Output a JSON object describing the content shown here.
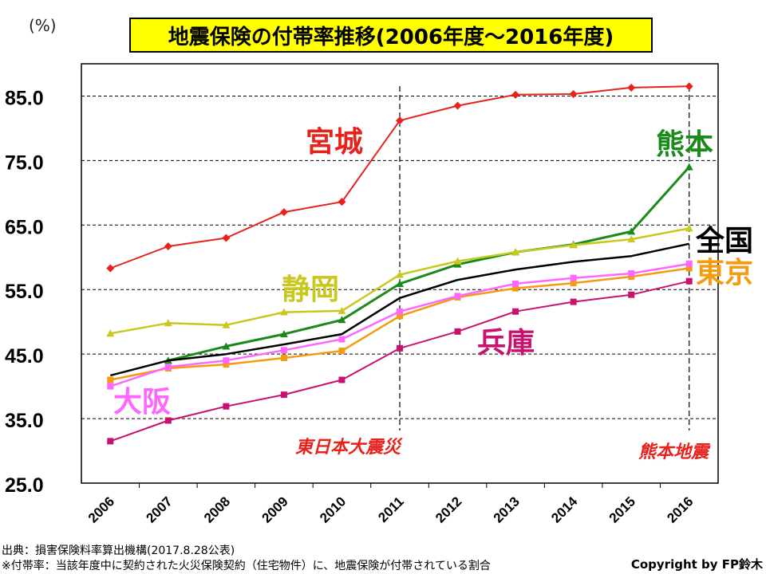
{
  "unit_label": "(%)",
  "colors": {
    "miyagi": "#e8211b",
    "kumamoto": "#1a8a1a",
    "shizuoka": "#c8c81e",
    "zenkoku": "#000000",
    "tokyo": "#f39c12",
    "osaka": "#ff66ff",
    "hyogo": "#c8126e",
    "event": "#e8211b",
    "title_bg": "#ffff00"
  },
  "chart_data": {
    "type": "line",
    "title": "地震保険の付帯率推移(2006年度～2016年度)",
    "xlabel": "",
    "ylabel": "(%)",
    "ylim": [
      25,
      90
    ],
    "yticks": [
      25.0,
      35.0,
      45.0,
      55.0,
      65.0,
      75.0,
      85.0
    ],
    "ytick_labels": [
      "25.0",
      "35.0",
      "45.0",
      "55.0",
      "65.0",
      "75.0",
      "85.0"
    ],
    "categories": [
      "2006",
      "2007",
      "2008",
      "2009",
      "2010",
      "2011",
      "2012",
      "2013",
      "2014",
      "2015",
      "2016"
    ],
    "grid": true,
    "series": [
      {
        "key": "miyagi",
        "name": "宮城",
        "marker": "diamond",
        "values": [
          58.3,
          61.7,
          63.0,
          67.0,
          68.6,
          81.2,
          83.5,
          85.2,
          85.3,
          86.3,
          86.5
        ]
      },
      {
        "key": "kumamoto",
        "name": "熊本",
        "marker": "triangle",
        "values": [
          null,
          44.0,
          46.2,
          48.1,
          50.3,
          55.9,
          58.9,
          60.8,
          62.0,
          64.0,
          74.0
        ]
      },
      {
        "key": "shizuoka",
        "name": "静岡",
        "marker": "triangle",
        "values": [
          48.2,
          49.8,
          49.5,
          51.5,
          51.7,
          57.3,
          59.4,
          60.8,
          61.9,
          62.8,
          64.5
        ]
      },
      {
        "key": "zenkoku",
        "name": "全国",
        "marker": "none",
        "values": [
          41.7,
          44.0,
          45.0,
          46.5,
          48.1,
          53.7,
          56.5,
          58.1,
          59.3,
          60.2,
          62.1
        ]
      },
      {
        "key": "tokyo",
        "name": "東京",
        "marker": "square",
        "values": [
          41.0,
          42.8,
          43.4,
          44.4,
          45.5,
          50.9,
          53.8,
          55.2,
          56.0,
          57.0,
          58.3
        ]
      },
      {
        "key": "osaka",
        "name": "大阪",
        "marker": "square",
        "values": [
          40.0,
          43.0,
          44.0,
          45.6,
          47.3,
          51.6,
          54.0,
          55.9,
          56.8,
          57.5,
          59.0
        ]
      },
      {
        "key": "hyogo",
        "name": "兵庫",
        "marker": "square",
        "values": [
          31.5,
          34.7,
          36.9,
          38.7,
          41.0,
          45.9,
          48.5,
          51.6,
          53.1,
          54.2,
          56.3
        ]
      }
    ],
    "annotations": [
      {
        "label": "東日本大震災",
        "at": "2011"
      },
      {
        "label": "熊本地震",
        "at": "2016"
      }
    ]
  },
  "footer": {
    "source": "出典：損害保険料率算出機構(2017.8.28公表)",
    "note": "※付帯率：当該年度中に契約された火災保険契約（住宅物件）に、地震保険が付帯されている割合",
    "copyright": "Copyright by FP鈴木"
  }
}
